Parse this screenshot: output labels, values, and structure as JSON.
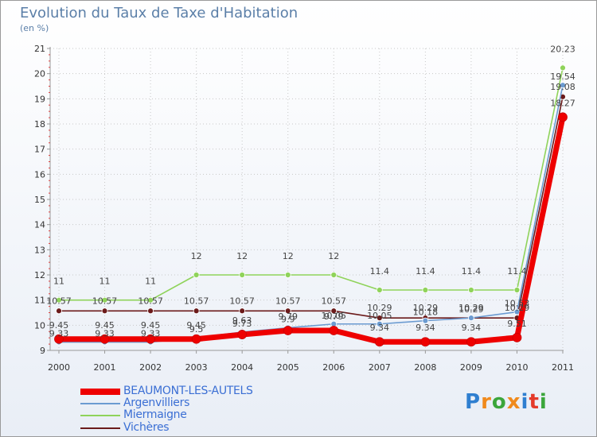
{
  "chart_data": {
    "type": "line",
    "title": "Evolution du Taux de Taxe d'Habitation",
    "ylabel": "(en %)",
    "xlabel": "",
    "ylim": [
      9,
      21
    ],
    "yticks": [
      "9",
      "10",
      "11",
      "12",
      "13",
      "14",
      "15",
      "16",
      "17",
      "18",
      "19",
      "20",
      "21"
    ],
    "categories": [
      "2000",
      "2001",
      "2002",
      "2003",
      "2004",
      "2005",
      "2006",
      "2007",
      "2008",
      "2009",
      "2010",
      "2011"
    ],
    "series": [
      {
        "name": "BEAUMONT-LES-AUTELS",
        "color": "#ee0000",
        "values": [
          9.45,
          9.45,
          9.45,
          9.45,
          9.63,
          9.79,
          9.79,
          9.34,
          9.34,
          9.34,
          9.51,
          18.27
        ],
        "labels": [
          "9.45",
          "9.45",
          "9.45",
          "9.45",
          "9.63",
          "9.79",
          "9.79",
          "9.34",
          "9.34",
          "9.34",
          "9.51",
          "18.27"
        ]
      },
      {
        "name": "Argenvilliers",
        "color": "#6b9bd1",
        "values": [
          9.33,
          9.33,
          9.33,
          9.5,
          9.73,
          9.9,
          10.05,
          10.05,
          10.18,
          10.29,
          10.53,
          19.54
        ],
        "labels": [
          "9.33",
          "9.33",
          "9.33",
          "9.5",
          "9.73",
          "9.9",
          "10.05",
          "10.05",
          "10.18",
          "10.29",
          "10.53",
          "19.54"
        ]
      },
      {
        "name": "Miermaigne",
        "color": "#8fd35a",
        "values": [
          11,
          11,
          11,
          12,
          12,
          12,
          12,
          11.4,
          11.4,
          11.4,
          11.4,
          20.23
        ],
        "labels": [
          "11",
          "11",
          "11",
          "12",
          "12",
          "12",
          "12",
          "11.4",
          "11.4",
          "11.4",
          "11.4",
          "20.23"
        ]
      },
      {
        "name": "Vichères",
        "color": "#6b1a1a",
        "values": [
          10.57,
          10.57,
          10.57,
          10.57,
          10.57,
          10.57,
          10.57,
          10.29,
          10.29,
          10.29,
          10.29,
          19.08
        ],
        "labels": [
          "10.57",
          "10.57",
          "10.57",
          "10.57",
          "10.57",
          "10.57",
          "10.57",
          "10.29",
          "10.29",
          "10.29",
          "10.29",
          "19.08"
        ]
      }
    ]
  },
  "logo": {
    "letters": [
      "P",
      "r",
      "o",
      "x",
      "i",
      "t",
      "i"
    ],
    "colors": [
      "#2f7fd0",
      "#f08a1c",
      "#3ba63b",
      "#f08a1c",
      "#2f7fd0",
      "#e43a2a",
      "#3ba63b"
    ]
  }
}
